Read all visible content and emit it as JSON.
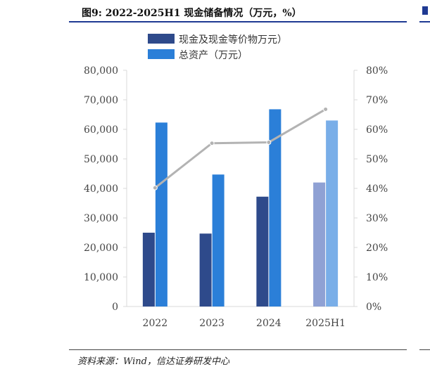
{
  "header": {
    "title": "图9: 2022-2025H1  现金储备情况（万元，%）"
  },
  "footer": {
    "source": "资料来源：Wind，信达证券研发中心"
  },
  "chart_data": {
    "type": "bar",
    "categories": [
      "2022",
      "2023",
      "2024",
      "2025H1"
    ],
    "series": [
      {
        "name": "现金及现金等价物万元）",
        "type": "bar",
        "axis": "left",
        "values": [
          25000,
          24700,
          37200,
          42000
        ],
        "colors": [
          "#2e4a8b",
          "#2e4a8b",
          "#2e4a8b",
          "#8fa1d4"
        ]
      },
      {
        "name": "总资产（万元）",
        "type": "bar",
        "axis": "left",
        "values": [
          62300,
          44700,
          66800,
          63000
        ],
        "colors": [
          "#2b7fd8",
          "#2b7fd8",
          "#2b7fd8",
          "#79aee8"
        ]
      },
      {
        "name": "",
        "type": "line",
        "axis": "right",
        "values": [
          40.2,
          55.3,
          55.6,
          66.8
        ],
        "color": "#b3b3b3"
      }
    ],
    "y_left": {
      "range": [
        0,
        80000
      ],
      "ticks": [
        "80,000",
        "70,000",
        "60,000",
        "50,000",
        "40,000",
        "30,000",
        "20,000",
        "10,000",
        "0"
      ]
    },
    "y_right": {
      "range": [
        0,
        80
      ],
      "ticks": [
        "80%",
        "70%",
        "60%",
        "50%",
        "40%",
        "30%",
        "20%",
        "10%",
        "0%"
      ]
    },
    "grid": false,
    "legend_position": "top"
  }
}
